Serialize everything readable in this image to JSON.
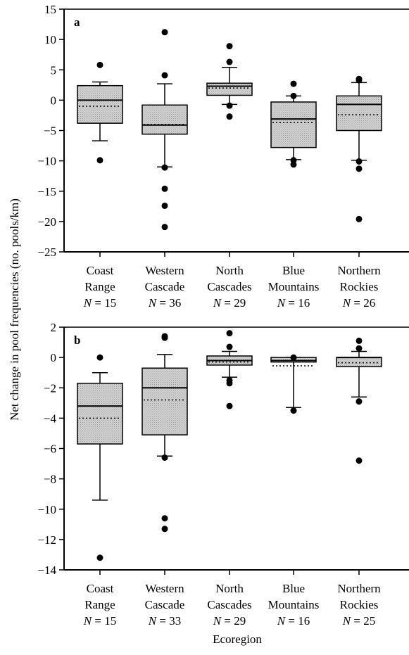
{
  "figure": {
    "ylabel": "Net change in pool frequencies (no. pools/km)",
    "xlabel": "Ecoregion"
  },
  "chart_data": [
    {
      "type": "box",
      "panel_label": "a",
      "ylim": [
        -25,
        15
      ],
      "yticks": [
        15,
        10,
        5,
        0,
        -5,
        -10,
        -15,
        -20,
        -25
      ],
      "categories": [
        {
          "name": [
            "Coast",
            "Range"
          ],
          "n_label": "N = 15",
          "q1": -3.8,
          "median": 0.0,
          "q3": 2.4,
          "mean": -1.0,
          "whisker_low": -6.7,
          "whisker_high": 3.0,
          "outliers": [
            -9.9,
            5.8
          ]
        },
        {
          "name": [
            "Western",
            "Cascade"
          ],
          "n_label": "N = 36",
          "q1": -5.6,
          "median": -4.1,
          "q3": -0.8,
          "mean": -4.0,
          "whisker_low": -11.0,
          "whisker_high": 2.7,
          "outliers": [
            -20.9,
            -17.4,
            -14.6,
            -11.1,
            4.1,
            11.2
          ]
        },
        {
          "name": [
            "North",
            "Cascades"
          ],
          "n_label": "N = 29",
          "q1": 0.8,
          "median": 2.3,
          "q3": 2.8,
          "mean": 2.0,
          "whisker_low": -0.7,
          "whisker_high": 5.4,
          "outliers": [
            -2.7,
            -0.9,
            6.3,
            8.9
          ]
        },
        {
          "name": [
            "Blue",
            "Mountains"
          ],
          "n_label": "N = 16",
          "q1": -7.8,
          "median": -3.1,
          "q3": -0.3,
          "mean": -3.7,
          "whisker_low": -9.8,
          "whisker_high": 0.7,
          "outliers": [
            -10.6,
            -9.9,
            0.7,
            2.7
          ]
        },
        {
          "name": [
            "Northern",
            "Rockies"
          ],
          "n_label": "N = 26",
          "q1": -5.0,
          "median": -0.7,
          "q3": 0.7,
          "mean": -2.4,
          "whisker_low": -9.9,
          "whisker_high": 2.9,
          "outliers": [
            -19.6,
            -11.3,
            -10.1,
            3.3,
            3.5
          ]
        }
      ]
    },
    {
      "type": "box",
      "panel_label": "b",
      "ylim": [
        -14,
        2
      ],
      "yticks": [
        2,
        0,
        -2,
        -4,
        -6,
        -8,
        -10,
        -12,
        -14
      ],
      "categories": [
        {
          "name": [
            "Coast",
            "Range"
          ],
          "n_label": "N = 15",
          "q1": -5.7,
          "median": -3.2,
          "q3": -1.7,
          "mean": -4.0,
          "whisker_low": -9.4,
          "whisker_high": -1.0,
          "outliers": [
            -13.2,
            0.0
          ]
        },
        {
          "name": [
            "Western",
            "Cascade"
          ],
          "n_label": "N = 33",
          "q1": -5.1,
          "median": -2.0,
          "q3": -0.7,
          "mean": -2.8,
          "whisker_low": -6.5,
          "whisker_high": 0.2,
          "outliers": [
            -11.3,
            -10.6,
            -6.6,
            1.3,
            1.4
          ]
        },
        {
          "name": [
            "North",
            "Cascades"
          ],
          "n_label": "N = 29",
          "q1": -0.5,
          "median": -0.2,
          "q3": 0.1,
          "mean": -0.3,
          "whisker_low": -1.3,
          "whisker_high": 0.4,
          "outliers": [
            -3.2,
            -1.7,
            -1.5,
            0.7,
            1.6
          ]
        },
        {
          "name": [
            "Blue",
            "Mountains"
          ],
          "n_label": "N = 16",
          "q1": -0.3,
          "median": -0.2,
          "q3": 0.0,
          "mean": -0.55,
          "whisker_low": -3.3,
          "whisker_high": 0.0,
          "outliers": [
            -3.5,
            0.0
          ]
        },
        {
          "name": [
            "Northern",
            "Rockies"
          ],
          "n_label": "N = 25",
          "q1": -0.6,
          "median": 0.0,
          "q3": 0.0,
          "mean": -0.35,
          "whisker_low": -2.6,
          "whisker_high": 0.4,
          "outliers": [
            -6.8,
            -2.9,
            0.6,
            1.1
          ]
        }
      ]
    }
  ],
  "colors": {
    "box_fill": "#c8c8c8",
    "ink": "#000000"
  }
}
